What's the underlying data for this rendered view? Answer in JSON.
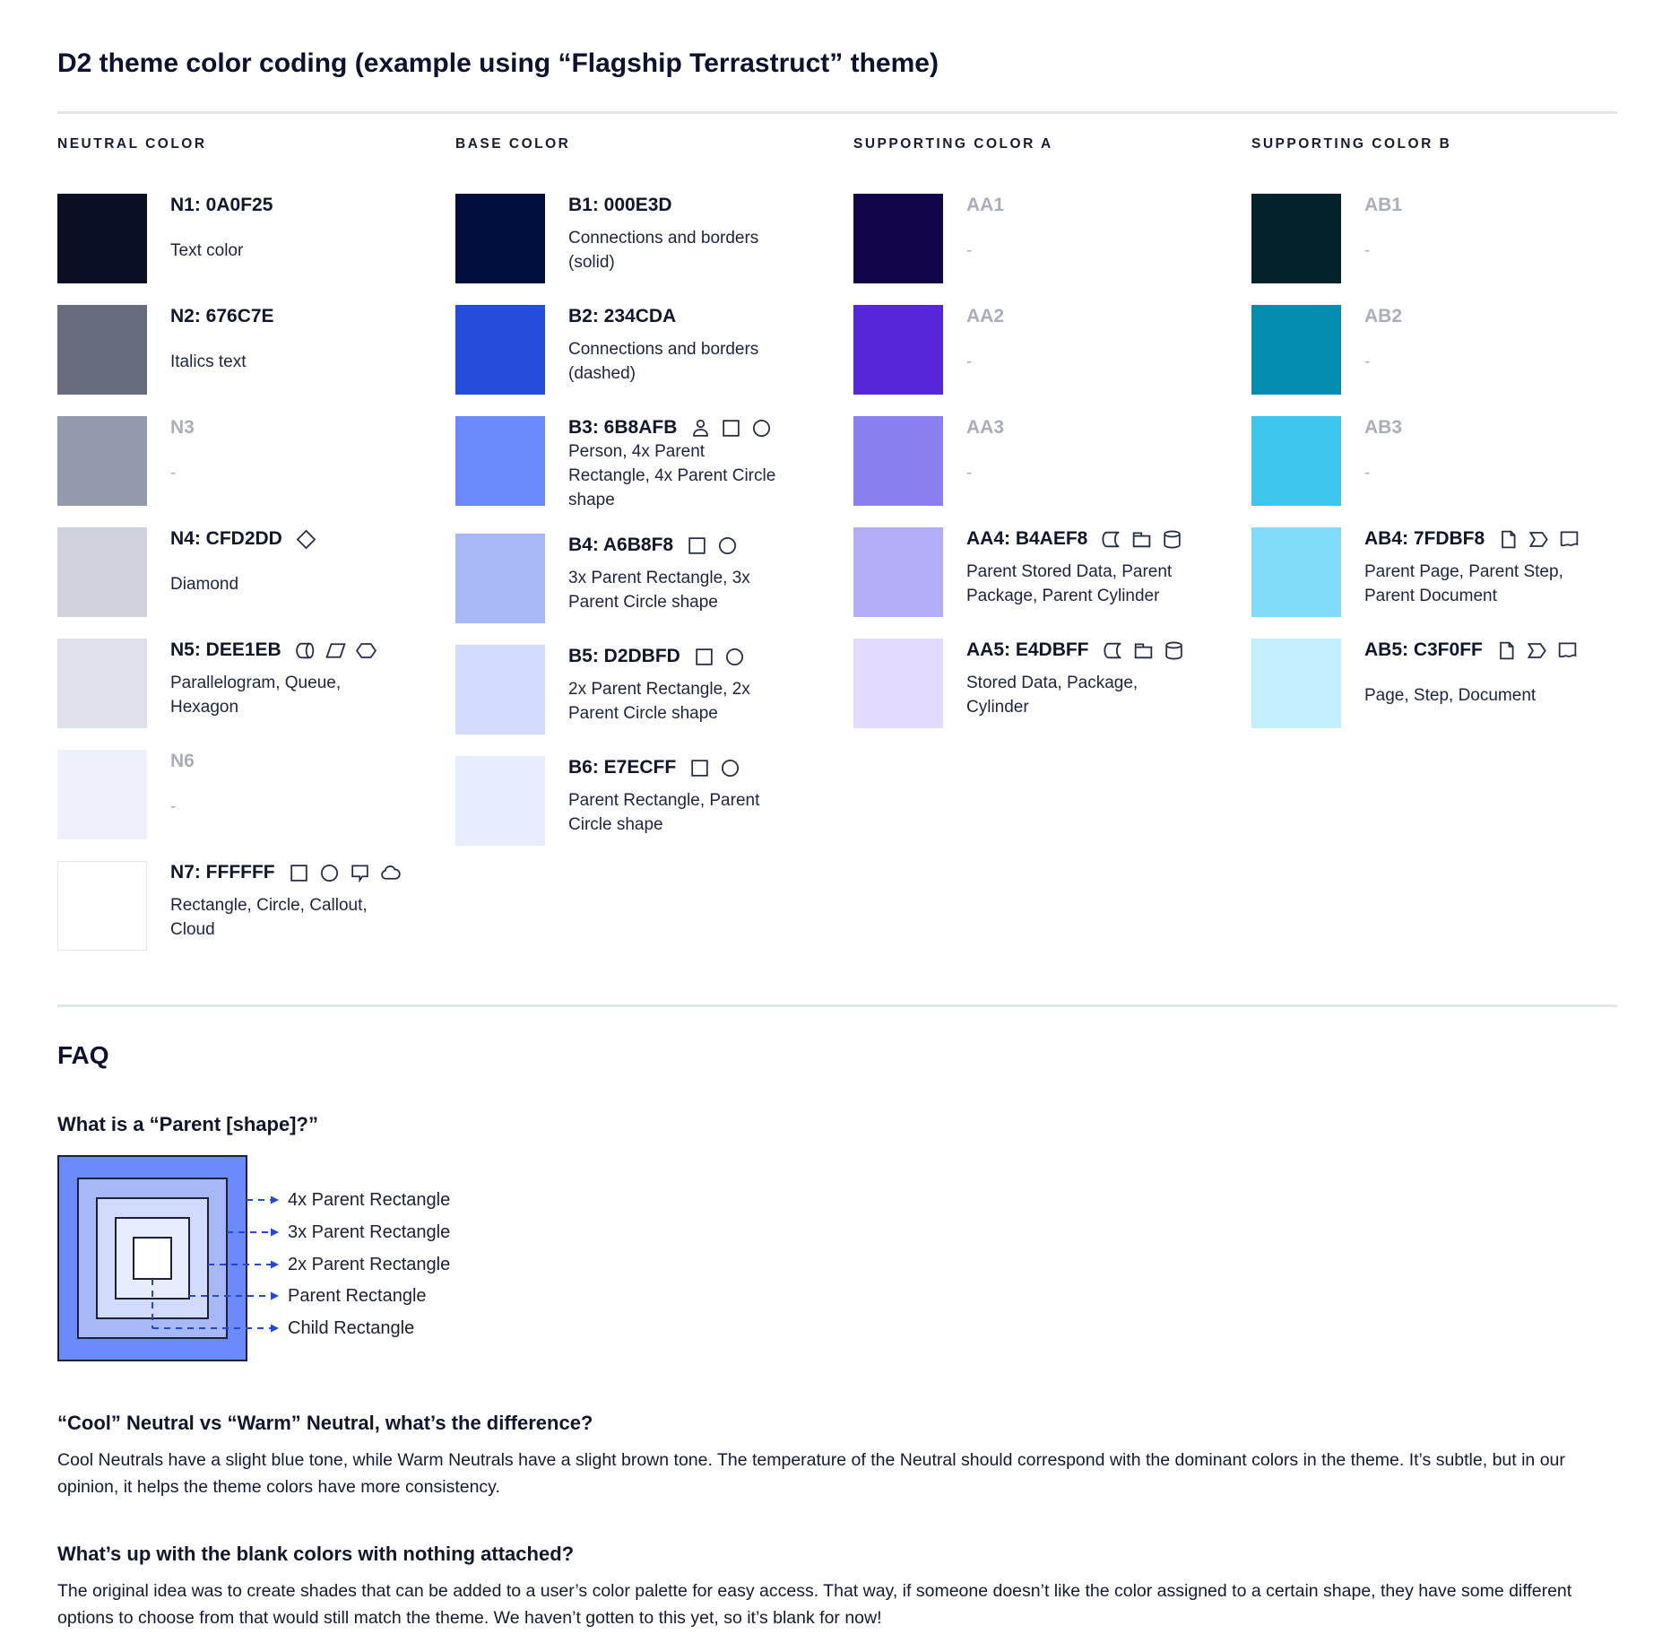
{
  "page": {
    "title": "D2 theme color coding (example using “Flagship Terrastruct” theme)"
  },
  "palette": {
    "columns": [
      {
        "header": "NEUTRAL COLOR",
        "swatches": [
          {
            "label": "N1: 0A0F25",
            "hex": "#0A0F25",
            "description": "Text color",
            "icons": [],
            "muted": false,
            "bordered": false
          },
          {
            "label": "N2: 676C7E",
            "hex": "#676C7E",
            "description": "Italics text",
            "icons": [],
            "muted": false,
            "bordered": false
          },
          {
            "label": "N3",
            "hex": "#939AAD",
            "description": "-",
            "icons": [],
            "muted": true,
            "bordered": false
          },
          {
            "label": "N4: CFD2DD",
            "hex": "#CFD2DD",
            "description": "Diamond",
            "icons": [
              "diamond-icon"
            ],
            "muted": false,
            "bordered": false
          },
          {
            "label": "N5: DEE1EB",
            "hex": "#DEE1EB",
            "description": "Parallelogram, Queue, Hexagon",
            "icons": [
              "queue-icon",
              "parallelogram-icon",
              "hexagon-icon"
            ],
            "muted": false,
            "bordered": false
          },
          {
            "label": "N6",
            "hex": "#EDF0F8",
            "description": "-",
            "icons": [],
            "muted": true,
            "bordered": false
          },
          {
            "label": "N7: FFFFFF",
            "hex": "#FFFFFF",
            "description": "Rectangle, Circle, Callout, Cloud",
            "icons": [
              "rectangle-icon",
              "circle-icon",
              "callout-icon",
              "cloud-icon"
            ],
            "muted": false,
            "bordered": true
          }
        ]
      },
      {
        "header": "BASE COLOR",
        "swatches": [
          {
            "label": "B1: 000E3D",
            "hex": "#000E3D",
            "description": "Connections and borders (solid)",
            "icons": [],
            "muted": false,
            "bordered": false
          },
          {
            "label": "B2: 234CDA",
            "hex": "#234CDA",
            "description": "Connections and borders (dashed)",
            "icons": [],
            "muted": false,
            "bordered": false
          },
          {
            "label": "B3: 6B8AFB",
            "hex": "#6B8AFB",
            "description": "Person, 4x Parent Rectangle, 4x Parent Circle shape",
            "icons": [
              "person-icon",
              "rectangle-icon",
              "circle-icon"
            ],
            "muted": false,
            "bordered": false
          },
          {
            "label": "B4: A6B8F8",
            "hex": "#A6B8F8",
            "description": "3x Parent Rectangle, 3x Parent Circle shape",
            "icons": [
              "rectangle-icon",
              "circle-icon"
            ],
            "muted": false,
            "bordered": false
          },
          {
            "label": "B5: D2DBFD",
            "hex": "#D2DBFD",
            "description": "2x Parent Rectangle, 2x Parent Circle shape",
            "icons": [
              "rectangle-icon",
              "circle-icon"
            ],
            "muted": false,
            "bordered": false
          },
          {
            "label": "B6: E7ECFF",
            "hex": "#E7ECFF",
            "description": "Parent Rectangle, Parent Circle shape",
            "icons": [
              "rectangle-icon",
              "circle-icon"
            ],
            "muted": false,
            "bordered": false
          }
        ]
      },
      {
        "header": "SUPPORTING COLOR A",
        "swatches": [
          {
            "label": "AA1",
            "hex": "#140549",
            "description": "-",
            "icons": [],
            "muted": true,
            "bordered": false
          },
          {
            "label": "AA2",
            "hex": "#5527D8",
            "description": "-",
            "icons": [],
            "muted": true,
            "bordered": false
          },
          {
            "label": "AA3",
            "hex": "#8A7FEE",
            "description": "-",
            "icons": [],
            "muted": true,
            "bordered": false
          },
          {
            "label": "AA4: B4AEF8",
            "hex": "#B4AEF8",
            "description": "Parent Stored Data, Parent Package,  Parent Cylinder",
            "icons": [
              "stored-data-icon",
              "package-icon",
              "cylinder-icon"
            ],
            "muted": false,
            "bordered": false
          },
          {
            "label": "AA5: E4DBFF",
            "hex": "#E4DBFF",
            "description": "Stored Data, Package, Cylinder",
            "icons": [
              "stored-data-icon",
              "package-icon",
              "cylinder-icon"
            ],
            "muted": false,
            "bordered": false
          }
        ]
      },
      {
        "header": "SUPPORTING COLOR B",
        "swatches": [
          {
            "label": "AB1",
            "hex": "#032229",
            "description": "-",
            "icons": [],
            "muted": true,
            "bordered": false
          },
          {
            "label": "AB2",
            "hex": "#028DB1",
            "description": "-",
            "icons": [],
            "muted": true,
            "bordered": false
          },
          {
            "label": "AB3",
            "hex": "#3EC7EE",
            "description": "-",
            "icons": [],
            "muted": true,
            "bordered": false
          },
          {
            "label": "AB4: 7FDBF8",
            "hex": "#7FDBF8",
            "description": "Parent Page, Parent Step, Parent Document",
            "icons": [
              "page-icon",
              "step-icon",
              "document-icon"
            ],
            "muted": false,
            "bordered": false
          },
          {
            "label": "AB5: C3F0FF",
            "hex": "#C3F0FF",
            "description": "Page, Step, Document",
            "icons": [
              "page-icon",
              "step-icon",
              "document-icon"
            ],
            "muted": false,
            "bordered": false
          }
        ]
      }
    ]
  },
  "faq": {
    "heading": "FAQ",
    "questions": [
      {
        "question": "What is a “Parent [shape]?”"
      },
      {
        "question": "“Cool” Neutral vs “Warm” Neutral, what’s the difference?",
        "answer": "Cool Neutrals have a slight blue tone, while Warm Neutrals have a slight brown tone. The temperature of the Neutral should correspond with the dominant colors in the theme. It’s subtle, but in our opinion, it helps the theme colors have more consistency."
      },
      {
        "question": "What’s up with the blank colors with nothing attached?",
        "answer": "The original idea was to create shades that can be added to a user’s color palette for easy access. That way, if someone doesn’t like the color assigned to a certain shape, they have some different options to choose from that would still match the theme. We haven’t gotten to this yet, so it’s blank for now!"
      }
    ],
    "diagram": {
      "layers": [
        {
          "label": "4x Parent Rectangle",
          "color": "#6B8AFB"
        },
        {
          "label": "3x Parent Rectangle",
          "color": "#A6B8F8"
        },
        {
          "label": "2x Parent Rectangle",
          "color": "#D2DBFD"
        },
        {
          "label": "Parent Rectangle",
          "color": "#E7ECFF"
        },
        {
          "label": "Child Rectangle",
          "color": "#FFFFFF"
        }
      ],
      "arrow_color": "#2347D6",
      "border_color": "#1B2136"
    }
  }
}
